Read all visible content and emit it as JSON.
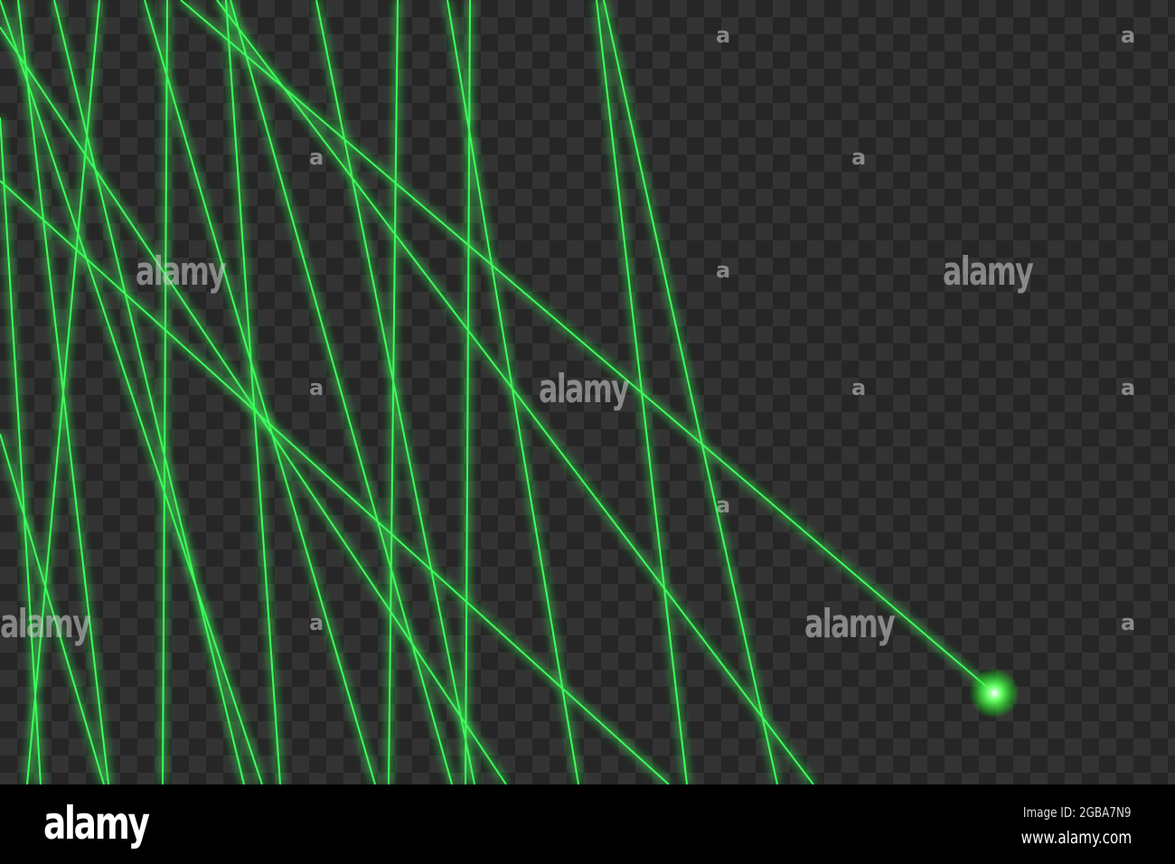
{
  "watermark": {
    "word": "alamy",
    "symbol": "a"
  },
  "footer": {
    "logo": "alamy",
    "image_id": "Image ID: 2GBA7N9",
    "url": "www.alamy.com"
  },
  "colors": {
    "laser": "#3dff5a",
    "glow": "#1fd63a",
    "background_dark": "#262626",
    "background_light": "#333333"
  }
}
